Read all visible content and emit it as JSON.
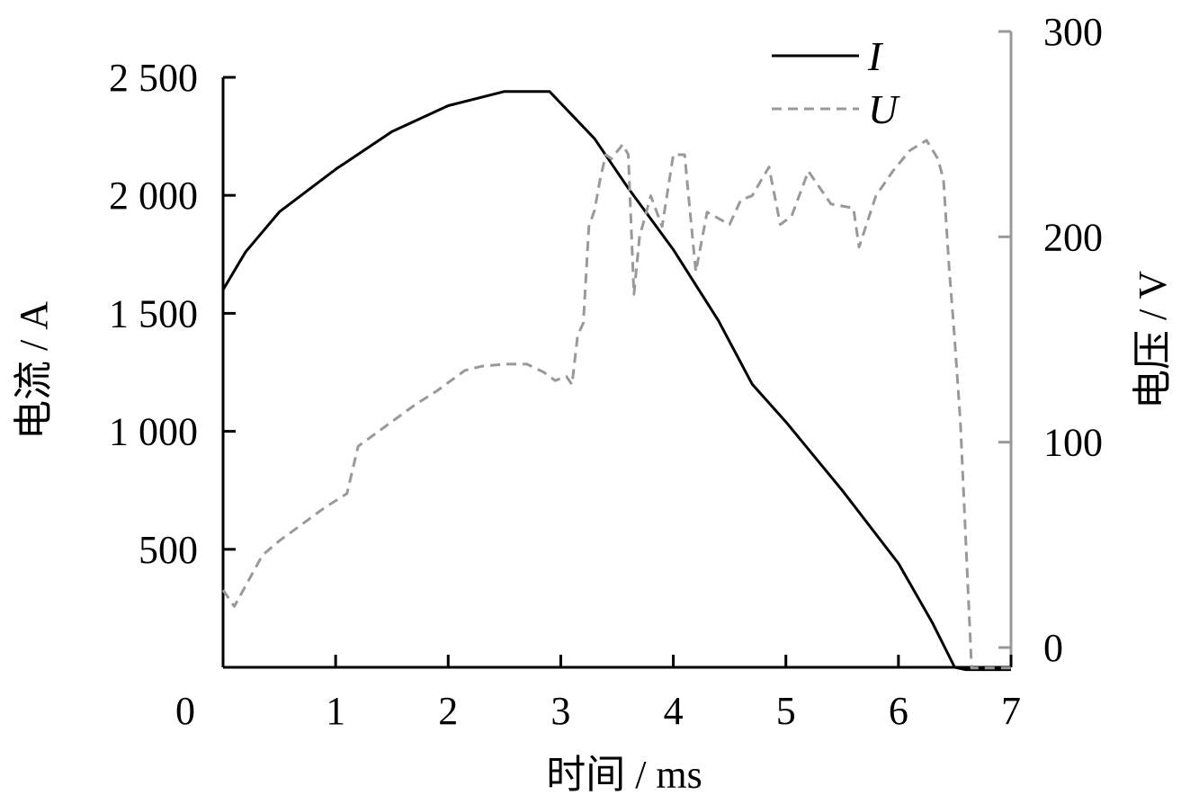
{
  "chart_data": {
    "type": "line",
    "xlabel": "时间 / ms",
    "ylabel_left": "电流 / A",
    "ylabel_right": "电压 / V",
    "xlim": [
      0,
      7
    ],
    "ylim_left": [
      0,
      2500
    ],
    "ylim_right": [
      -10,
      300
    ],
    "x_ticks": [
      0,
      1,
      2,
      3,
      4,
      5,
      6,
      7
    ],
    "y_left_ticks": [
      500,
      1000,
      1500,
      2000,
      2500
    ],
    "y_left_tick_labels": [
      "500",
      "1 000",
      "1 500",
      "2 000",
      "2 500"
    ],
    "y_right_ticks": [
      0,
      100,
      200,
      300
    ],
    "grid": false,
    "legend_position": "top-right",
    "colors": {
      "current": "#000000",
      "voltage": "#999999",
      "right_axis": "#999999"
    },
    "series": [
      {
        "name": "I",
        "axis": "left",
        "style": "solid",
        "x": [
          0,
          0.2,
          0.5,
          1.0,
          1.5,
          2.0,
          2.5,
          2.9,
          3.3,
          3.6,
          4.0,
          4.4,
          4.7,
          5.0,
          5.5,
          6.0,
          6.3,
          6.5,
          6.6,
          7.0
        ],
        "y": [
          1600,
          1760,
          1930,
          2110,
          2270,
          2380,
          2440,
          2440,
          2240,
          2030,
          1770,
          1470,
          1200,
          1040,
          750,
          440,
          190,
          0,
          -10,
          -10
        ]
      },
      {
        "name": "U",
        "axis": "right",
        "style": "dashed",
        "x": [
          0,
          0.1,
          0.2,
          0.35,
          0.5,
          0.7,
          0.9,
          1.1,
          1.2,
          1.3,
          1.5,
          1.7,
          1.9,
          2.1,
          2.15,
          2.3,
          2.5,
          2.7,
          2.85,
          2.95,
          3.05,
          3.1,
          3.15,
          3.2,
          3.25,
          3.3,
          3.35,
          3.4,
          3.45,
          3.55,
          3.6,
          3.65,
          3.7,
          3.8,
          3.9,
          4.0,
          4.1,
          4.2,
          4.3,
          4.5,
          4.6,
          4.7,
          4.85,
          4.95,
          5.05,
          5.2,
          5.4,
          5.6,
          5.65,
          5.8,
          5.95,
          6.1,
          6.25,
          6.35,
          6.4,
          6.45,
          6.5,
          6.55,
          6.65,
          6.9,
          7.0
        ],
        "y": [
          28,
          20,
          30,
          45,
          52,
          60,
          68,
          75,
          98,
          102,
          110,
          118,
          125,
          133,
          135,
          137,
          138,
          138,
          134,
          130,
          132,
          128,
          152,
          158,
          205,
          213,
          228,
          240,
          238,
          245,
          240,
          172,
          200,
          220,
          205,
          240,
          240,
          183,
          212,
          206,
          218,
          220,
          234,
          206,
          210,
          232,
          216,
          214,
          195,
          220,
          232,
          242,
          247,
          238,
          228,
          185,
          150,
          110,
          -10,
          -10,
          -10
        ]
      }
    ]
  }
}
